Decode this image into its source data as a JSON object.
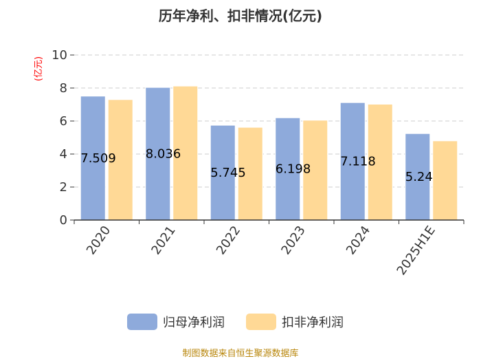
{
  "chart_data": {
    "type": "bar",
    "title": "历年净利、扣非情况(亿元)",
    "ylabel": "(亿元)",
    "categories": [
      "2020",
      "2021",
      "2022",
      "2023",
      "2024",
      "2025H1E"
    ],
    "series": [
      {
        "name": "归母净利润",
        "color": "#8eaadb",
        "values": [
          7.509,
          8.036,
          5.745,
          6.198,
          7.118,
          5.24
        ]
      },
      {
        "name": "扣非净利润",
        "color": "#ffd996",
        "values": [
          7.3,
          8.12,
          5.62,
          6.05,
          7.02,
          4.8
        ]
      }
    ],
    "data_labels": [
      "7.509",
      "8.036",
      "5.745",
      "6.198",
      "7.118",
      "5.24"
    ],
    "yticks": [
      0,
      2,
      4,
      6,
      8,
      10
    ],
    "ylim": [
      0,
      10
    ],
    "grid": "horizontal dashed",
    "legend_position": "bottom"
  },
  "source": "制图数据来自恒生聚源数据库"
}
